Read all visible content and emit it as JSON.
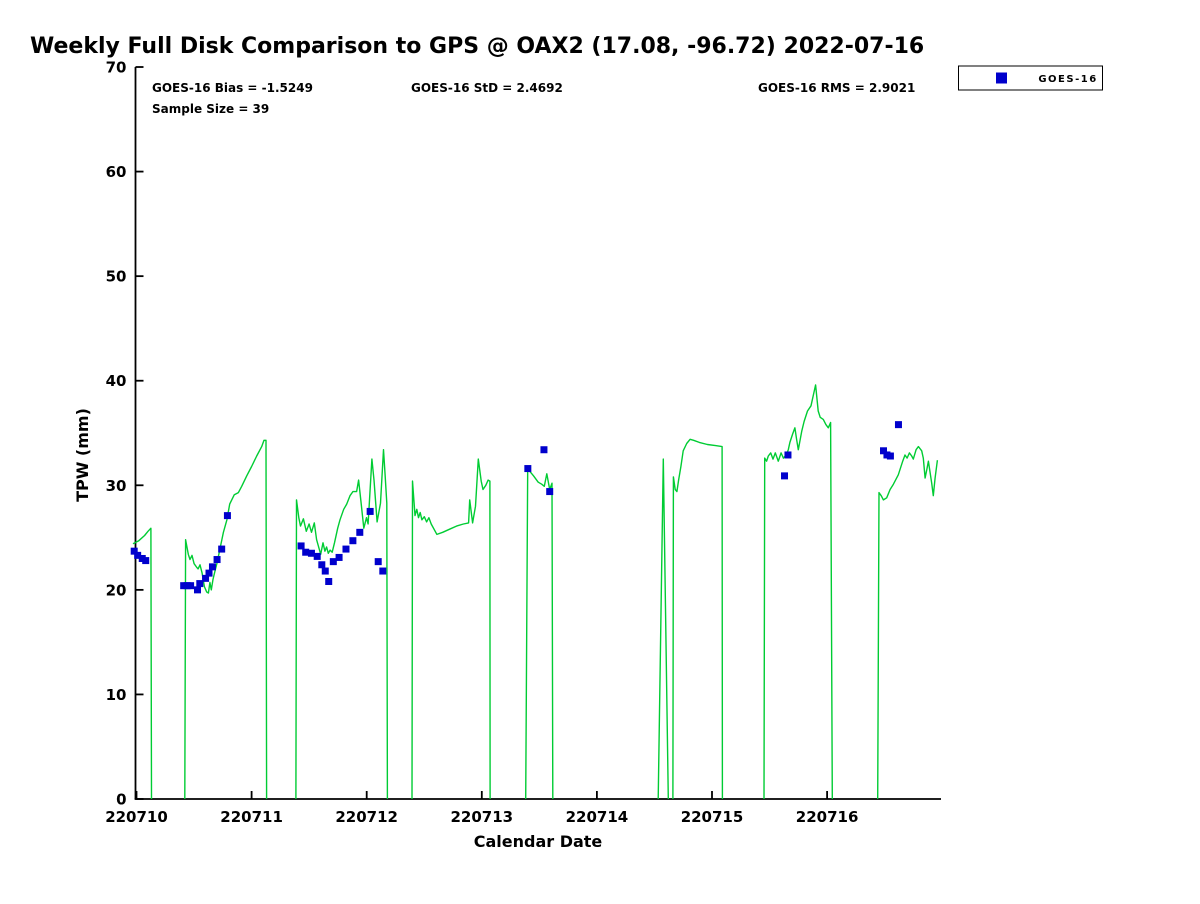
{
  "title": "Weekly Full Disk Comparison to GPS @ OAX2 (17.08, -96.72) 2022-07-16",
  "annotations": {
    "bias": "GOES-16 Bias = -1.5249",
    "std": "GOES-16 StD = 2.4692",
    "rms": "GOES-16 RMS = 2.9021",
    "sample_size": "Sample Size = 39"
  },
  "legend": {
    "entries": [
      {
        "label": "GOES-16",
        "marker": "filled-square",
        "color": "#0000CC"
      }
    ]
  },
  "colors": {
    "gps_line": "#00CC33",
    "goes16_marker": "#0000CC",
    "axis": "#000000",
    "background": "#FFFFFF"
  },
  "chart_data": {
    "type": "line",
    "title": "Weekly Full Disk Comparison to GPS @ OAX2 (17.08, -96.72) 2022-07-16",
    "xlabel": "Calendar Date",
    "ylabel": "TPW (mm)",
    "x_unit": "day_offset_from_220710",
    "x_tick_labels": [
      "220710",
      "220711",
      "220712",
      "220713",
      "220714",
      "220715",
      "220716"
    ],
    "x_tick_day_offsets": [
      0,
      1,
      2,
      3,
      4,
      5,
      6
    ],
    "xlim": [
      -0.03,
      6.99
    ],
    "ylim": [
      0,
      70
    ],
    "y_ticks": [
      0,
      10,
      20,
      30,
      40,
      50,
      60,
      70
    ],
    "grid": false,
    "legend_position": "outside-top-right",
    "series": [
      {
        "name": "GPS",
        "type": "line",
        "color": "#00CC33",
        "segments": [
          [
            [
              -0.03,
              24.4
            ],
            [
              0.02,
              24.7
            ],
            [
              0.07,
              25.2
            ],
            [
              0.1,
              25.6
            ],
            [
              0.125,
              25.9
            ],
            [
              0.13,
              0
            ]
          ],
          [
            [
              0.42,
              0
            ],
            [
              0.427,
              24.8
            ],
            [
              0.45,
              23.4
            ],
            [
              0.465,
              22.9
            ],
            [
              0.482,
              23.3
            ],
            [
              0.5,
              22.5
            ],
            [
              0.52,
              22.2
            ],
            [
              0.535,
              22.0
            ],
            [
              0.552,
              22.4
            ],
            [
              0.57,
              21.6
            ],
            [
              0.59,
              20.3
            ],
            [
              0.61,
              19.8
            ],
            [
              0.625,
              19.7
            ],
            [
              0.638,
              20.7
            ],
            [
              0.65,
              20.0
            ],
            [
              0.665,
              21.0
            ],
            [
              0.682,
              21.8
            ],
            [
              0.7,
              22.6
            ],
            [
              0.725,
              23.9
            ],
            [
              0.755,
              25.5
            ],
            [
              0.785,
              26.7
            ],
            [
              0.81,
              28.2
            ],
            [
              0.85,
              29.1
            ],
            [
              0.885,
              29.3
            ],
            [
              0.914,
              29.9
            ],
            [
              0.957,
              30.9
            ],
            [
              1.0,
              31.8
            ],
            [
              1.044,
              32.8
            ],
            [
              1.088,
              33.7
            ],
            [
              1.108,
              34.3
            ],
            [
              1.125,
              34.3
            ],
            [
              1.13,
              0
            ]
          ],
          [
            [
              1.385,
              0
            ],
            [
              1.39,
              28.6
            ],
            [
              1.41,
              26.9
            ],
            [
              1.425,
              26.1
            ],
            [
              1.45,
              26.8
            ],
            [
              1.475,
              25.6
            ],
            [
              1.5,
              26.3
            ],
            [
              1.52,
              25.5
            ],
            [
              1.545,
              26.4
            ],
            [
              1.565,
              24.8
            ],
            [
              1.6,
              23.4
            ],
            [
              1.62,
              24.5
            ],
            [
              1.637,
              23.7
            ],
            [
              1.652,
              24.1
            ],
            [
              1.666,
              23.5
            ],
            [
              1.682,
              23.8
            ],
            [
              1.7,
              23.6
            ],
            [
              1.72,
              24.5
            ],
            [
              1.748,
              25.9
            ],
            [
              1.768,
              26.7
            ],
            [
              1.8,
              27.7
            ],
            [
              1.826,
              28.2
            ],
            [
              1.855,
              29.0
            ],
            [
              1.88,
              29.4
            ],
            [
              1.912,
              29.4
            ],
            [
              1.93,
              30.5
            ],
            [
              1.95,
              28.5
            ],
            [
              1.975,
              25.9
            ],
            [
              1.998,
              26.9
            ],
            [
              2.012,
              26.3
            ],
            [
              2.045,
              32.5
            ],
            [
              2.063,
              30.5
            ],
            [
              2.09,
              26.5
            ],
            [
              2.12,
              28.3
            ],
            [
              2.146,
              33.4
            ],
            [
              2.16,
              31.0
            ],
            [
              2.175,
              28.3
            ],
            [
              2.18,
              0
            ]
          ],
          [
            [
              2.394,
              0
            ],
            [
              2.398,
              30.4
            ],
            [
              2.42,
              27.1
            ],
            [
              2.435,
              27.7
            ],
            [
              2.45,
              26.9
            ],
            [
              2.465,
              27.4
            ],
            [
              2.48,
              26.7
            ],
            [
              2.5,
              27.0
            ],
            [
              2.52,
              26.5
            ],
            [
              2.54,
              26.9
            ],
            [
              2.56,
              26.3
            ],
            [
              2.61,
              25.3
            ],
            [
              2.66,
              25.5
            ],
            [
              2.72,
              25.8
            ],
            [
              2.78,
              26.1
            ],
            [
              2.84,
              26.3
            ],
            [
              2.885,
              26.4
            ],
            [
              2.895,
              28.6
            ],
            [
              2.92,
              26.4
            ],
            [
              2.945,
              28.0
            ],
            [
              2.97,
              32.5
            ],
            [
              2.995,
              30.4
            ],
            [
              3.01,
              29.6
            ],
            [
              3.035,
              30.0
            ],
            [
              3.055,
              30.5
            ],
            [
              3.07,
              30.4
            ],
            [
              3.072,
              0
            ]
          ],
          [
            [
              3.381,
              0
            ],
            [
              3.399,
              31.7
            ],
            [
              3.42,
              31.3
            ],
            [
              3.45,
              30.9
            ],
            [
              3.49,
              30.3
            ],
            [
              3.52,
              30.1
            ],
            [
              3.543,
              29.9
            ],
            [
              3.565,
              31.1
            ],
            [
              3.59,
              29.6
            ],
            [
              3.61,
              30.2
            ],
            [
              3.617,
              0
            ]
          ],
          [
            [
              4.533,
              0
            ],
            [
              4.577,
              32.5
            ],
            [
              4.62,
              0
            ]
          ],
          [
            [
              4.66,
              0
            ],
            [
              4.665,
              30.8
            ],
            [
              4.68,
              29.6
            ],
            [
              4.695,
              29.4
            ],
            [
              4.71,
              30.5
            ],
            [
              4.73,
              31.8
            ],
            [
              4.75,
              33.3
            ],
            [
              4.78,
              34.0
            ],
            [
              4.81,
              34.4
            ],
            [
              4.84,
              34.3
            ],
            [
              4.89,
              34.1
            ],
            [
              4.96,
              33.9
            ],
            [
              5.03,
              33.8
            ],
            [
              5.088,
              33.7
            ],
            [
              5.09,
              0
            ]
          ],
          [
            [
              5.452,
              0
            ],
            [
              5.458,
              32.6
            ],
            [
              5.474,
              32.3
            ],
            [
              5.489,
              32.8
            ],
            [
              5.51,
              33.1
            ],
            [
              5.53,
              32.5
            ],
            [
              5.55,
              33.1
            ],
            [
              5.576,
              32.3
            ],
            [
              5.6,
              33.1
            ],
            [
              5.62,
              32.6
            ],
            [
              5.645,
              32.9
            ],
            [
              5.663,
              33.4
            ],
            [
              5.677,
              34.1
            ],
            [
              5.7,
              34.9
            ],
            [
              5.72,
              35.5
            ],
            [
              5.735,
              34.4
            ],
            [
              5.75,
              33.4
            ],
            [
              5.78,
              35.2
            ],
            [
              5.8,
              36.1
            ],
            [
              5.83,
              37.1
            ],
            [
              5.86,
              37.6
            ],
            [
              5.9,
              39.6
            ],
            [
              5.923,
              37.1
            ],
            [
              5.94,
              36.5
            ],
            [
              5.967,
              36.3
            ],
            [
              5.99,
              35.8
            ],
            [
              6.01,
              35.5
            ],
            [
              6.03,
              36.0
            ],
            [
              6.045,
              0
            ]
          ],
          [
            [
              6.44,
              0
            ],
            [
              6.451,
              29.3
            ],
            [
              6.47,
              29.0
            ],
            [
              6.489,
              28.6
            ],
            [
              6.518,
              28.8
            ],
            [
              6.547,
              29.6
            ],
            [
              6.576,
              30.1
            ],
            [
              6.619,
              31.0
            ],
            [
              6.657,
              32.3
            ],
            [
              6.677,
              32.9
            ],
            [
              6.695,
              32.6
            ],
            [
              6.715,
              33.1
            ],
            [
              6.735,
              32.8
            ],
            [
              6.749,
              32.5
            ],
            [
              6.773,
              33.4
            ],
            [
              6.793,
              33.7
            ],
            [
              6.822,
              33.3
            ],
            [
              6.836,
              32.6
            ],
            [
              6.851,
              30.7
            ],
            [
              6.866,
              31.5
            ],
            [
              6.88,
              32.3
            ],
            [
              6.909,
              30.2
            ],
            [
              6.923,
              29.0
            ],
            [
              6.938,
              30.7
            ],
            [
              6.958,
              32.4
            ]
          ]
        ]
      },
      {
        "name": "GOES-16",
        "type": "scatter",
        "marker": "square",
        "color": "#0000CC",
        "points": [
          [
            -0.02,
            23.7
          ],
          [
            0.01,
            23.3
          ],
          [
            0.05,
            23.0
          ],
          [
            0.08,
            22.8
          ],
          [
            0.41,
            20.4
          ],
          [
            0.44,
            20.4
          ],
          [
            0.47,
            20.4
          ],
          [
            0.53,
            20.0
          ],
          [
            0.55,
            20.6
          ],
          [
            0.6,
            21.1
          ],
          [
            0.63,
            21.6
          ],
          [
            0.66,
            22.2
          ],
          [
            0.7,
            22.9
          ],
          [
            0.74,
            23.9
          ],
          [
            0.79,
            27.1
          ],
          [
            1.43,
            24.2
          ],
          [
            1.47,
            23.6
          ],
          [
            1.52,
            23.5
          ],
          [
            1.57,
            23.2
          ],
          [
            1.61,
            22.4
          ],
          [
            1.64,
            21.8
          ],
          [
            1.67,
            20.8
          ],
          [
            1.71,
            22.7
          ],
          [
            1.76,
            23.1
          ],
          [
            1.82,
            23.9
          ],
          [
            1.88,
            24.7
          ],
          [
            1.94,
            25.5
          ],
          [
            2.03,
            27.5
          ],
          [
            2.1,
            22.7
          ],
          [
            2.14,
            21.8
          ],
          [
            3.4,
            31.6
          ],
          [
            3.54,
            33.4
          ],
          [
            3.59,
            29.4
          ],
          [
            5.63,
            30.9
          ],
          [
            5.66,
            32.9
          ],
          [
            6.49,
            33.3
          ],
          [
            6.52,
            32.9
          ],
          [
            6.55,
            32.8
          ],
          [
            6.62,
            35.8
          ]
        ]
      }
    ],
    "stats": {
      "goes16_bias": -1.5249,
      "goes16_std": 2.4692,
      "goes16_rms": 2.9021,
      "sample_size": 39
    }
  }
}
